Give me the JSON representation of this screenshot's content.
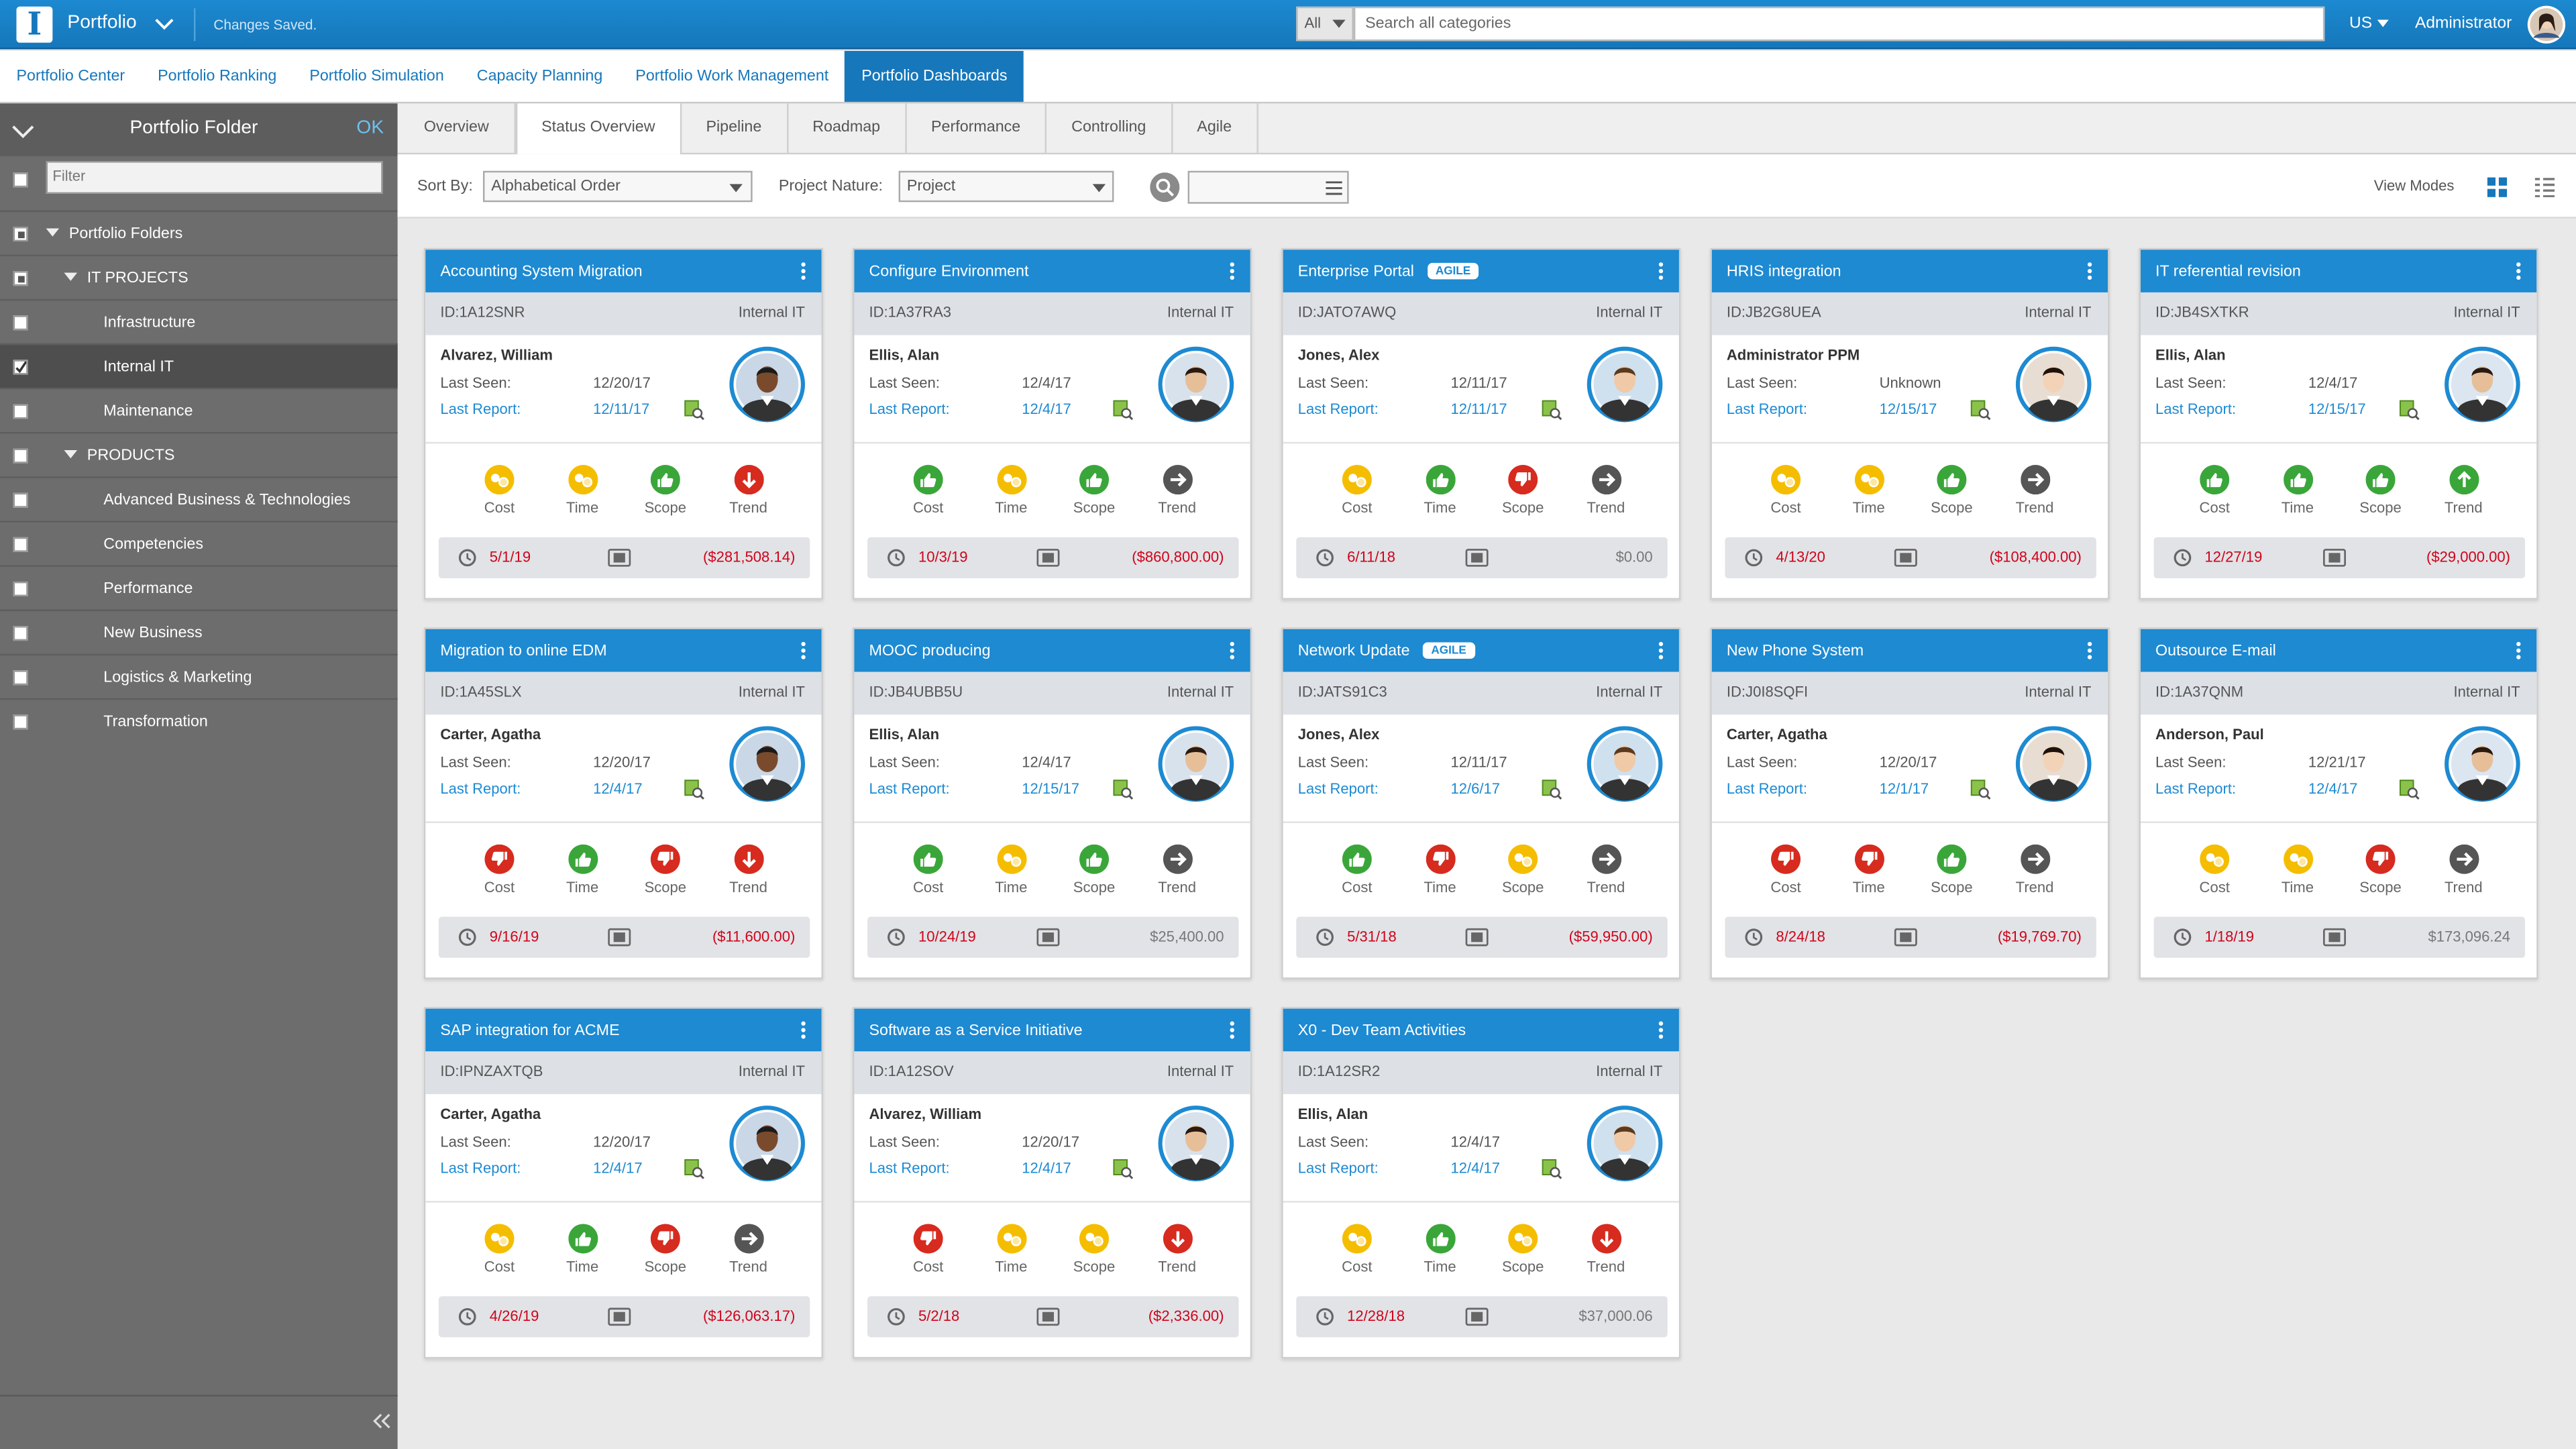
{
  "header": {
    "logo": "I",
    "app": "Portfolio",
    "status": "Changes Saved.",
    "search_scope": "All",
    "search_placeholder": "Search all categories",
    "locale": "US",
    "user": "Administrator"
  },
  "nav": {
    "items": [
      "Portfolio Center",
      "Portfolio Ranking",
      "Portfolio Simulation",
      "Capacity Planning",
      "Portfolio Work Management",
      "Portfolio Dashboards"
    ],
    "active": 5
  },
  "sidebar": {
    "title": "Portfolio Folder",
    "ok": "OK",
    "filter_placeholder": "Filter",
    "items": [
      {
        "label": "Portfolio Folders",
        "level": 0,
        "check": "partial",
        "expanded": true
      },
      {
        "label": "IT PROJECTS",
        "level": 1,
        "check": "partial",
        "expanded": true
      },
      {
        "label": "Infrastructure",
        "level": 2,
        "check": "none"
      },
      {
        "label": "Internal IT",
        "level": 2,
        "check": "checked",
        "selected": true
      },
      {
        "label": "Maintenance",
        "level": 2,
        "check": "none"
      },
      {
        "label": "PRODUCTS",
        "level": 1,
        "check": "none",
        "expanded": true
      },
      {
        "label": "Advanced Business & Technologies",
        "level": 2,
        "check": "none"
      },
      {
        "label": "Competencies",
        "level": 2,
        "check": "none"
      },
      {
        "label": "Performance",
        "level": 2,
        "check": "none"
      },
      {
        "label": "New Business",
        "level": 2,
        "check": "none"
      },
      {
        "label": "Logistics & Marketing",
        "level": 2,
        "check": "none"
      },
      {
        "label": "Transformation",
        "level": 2,
        "check": "none"
      }
    ]
  },
  "tabs": {
    "items": [
      "Overview",
      "Status Overview",
      "Pipeline",
      "Roadmap",
      "Performance",
      "Controlling",
      "Agile"
    ],
    "active": 1
  },
  "toolbar": {
    "sort_label": "Sort By:",
    "sort_value": "Alphabetical Order",
    "nature_label": "Project Nature:",
    "nature_value": "Project",
    "view_modes": "View Modes"
  },
  "labels": {
    "last_seen": "Last Seen:",
    "last_report": "Last Report:",
    "status": [
      "Cost",
      "Time",
      "Scope",
      "Trend"
    ]
  },
  "cards": [
    {
      "title": "Accounting System Migration",
      "id": "ID:1A12SNR",
      "dept": "Internal IT",
      "person": "Alvarez, William",
      "last_seen": "12/20/17",
      "last_report": "12/11/17",
      "status": [
        "yellow",
        "yellow",
        "green",
        "red-down"
      ],
      "date": "5/1/19",
      "amount": "($281,508.14)"
    },
    {
      "title": "Configure Environment",
      "id": "ID:1A37RA3",
      "dept": "Internal IT",
      "person": "Ellis, Alan",
      "last_seen": "12/4/17",
      "last_report": "12/4/17",
      "status": [
        "green",
        "yellow",
        "green",
        "gray-right"
      ],
      "date": "10/3/19",
      "amount": "($860,800.00)"
    },
    {
      "title": "Enterprise Portal",
      "badge": "AGILE",
      "id": "ID:JATO7AWQ",
      "dept": "Internal IT",
      "person": "Jones, Alex",
      "last_seen": "12/11/17",
      "last_report": "12/11/17",
      "status": [
        "yellow",
        "green",
        "red",
        "gray-right"
      ],
      "date": "6/11/18",
      "amount": "$0.00"
    },
    {
      "title": "HRIS integration",
      "id": "ID:JB2G8UEA",
      "dept": "Internal IT",
      "person": "Administrator PPM",
      "last_seen": "Unknown",
      "last_report": "12/15/17",
      "status": [
        "yellow",
        "yellow",
        "green",
        "gray-right"
      ],
      "date": "4/13/20",
      "amount": "($108,400.00)"
    },
    {
      "title": "IT referential revision",
      "id": "ID:JB4SXTKR",
      "dept": "Internal IT",
      "person": "Ellis, Alan",
      "last_seen": "12/4/17",
      "last_report": "12/15/17",
      "status": [
        "green",
        "green",
        "green",
        "green-up"
      ],
      "date": "12/27/19",
      "amount": "($29,000.00)"
    },
    {
      "title": "Migration to online EDM",
      "id": "ID:1A45SLX",
      "dept": "Internal IT",
      "person": "Carter, Agatha",
      "last_seen": "12/20/17",
      "last_report": "12/4/17",
      "status": [
        "red",
        "green",
        "red",
        "red-down"
      ],
      "date": "9/16/19",
      "amount": "($11,600.00)"
    },
    {
      "title": "MOOC producing",
      "id": "ID:JB4UBB5U",
      "dept": "Internal IT",
      "person": "Ellis, Alan",
      "last_seen": "12/4/17",
      "last_report": "12/15/17",
      "status": [
        "green",
        "yellow",
        "green",
        "gray-right"
      ],
      "date": "10/24/19",
      "amount": "$25,400.00"
    },
    {
      "title": "Network Update",
      "badge": "AGILE",
      "id": "ID:JATS91C3",
      "dept": "Internal IT",
      "person": "Jones, Alex",
      "last_seen": "12/11/17",
      "last_report": "12/6/17",
      "status": [
        "green",
        "red",
        "yellow",
        "gray-right"
      ],
      "date": "5/31/18",
      "amount": "($59,950.00)"
    },
    {
      "title": "New Phone System",
      "id": "ID:J0I8SQFI",
      "dept": "Internal IT",
      "person": "Carter, Agatha",
      "last_seen": "12/20/17",
      "last_report": "12/1/17",
      "status": [
        "red",
        "red",
        "green",
        "gray-right"
      ],
      "date": "8/24/18",
      "amount": "($19,769.70)"
    },
    {
      "title": "Outsource E-mail",
      "id": "ID:1A37QNM",
      "dept": "Internal IT",
      "person": "Anderson, Paul",
      "last_seen": "12/21/17",
      "last_report": "12/4/17",
      "status": [
        "yellow",
        "yellow",
        "red",
        "gray-right"
      ],
      "date": "1/18/19",
      "amount": "$173,096.24"
    },
    {
      "title": "SAP integration for ACME",
      "id": "ID:IPNZAXTQB",
      "dept": "Internal IT",
      "person": "Carter, Agatha",
      "last_seen": "12/20/17",
      "last_report": "12/4/17",
      "status": [
        "yellow",
        "green",
        "red",
        "gray-right"
      ],
      "date": "4/26/19",
      "amount": "($126,063.17)"
    },
    {
      "title": "Software as a Service Initiative",
      "id": "ID:1A12SOV",
      "dept": "Internal IT",
      "person": "Alvarez, William",
      "last_seen": "12/20/17",
      "last_report": "12/4/17",
      "status": [
        "red",
        "yellow",
        "yellow",
        "red-down"
      ],
      "date": "5/2/18",
      "amount": "($2,336.00)"
    },
    {
      "title": "X0 - Dev Team Activities",
      "id": "ID:1A12SR2",
      "dept": "Internal IT",
      "person": "Ellis, Alan",
      "last_seen": "12/4/17",
      "last_report": "12/4/17",
      "status": [
        "yellow",
        "green",
        "yellow",
        "red-down"
      ],
      "date": "12/28/18",
      "amount": "$37,000.06"
    }
  ]
}
